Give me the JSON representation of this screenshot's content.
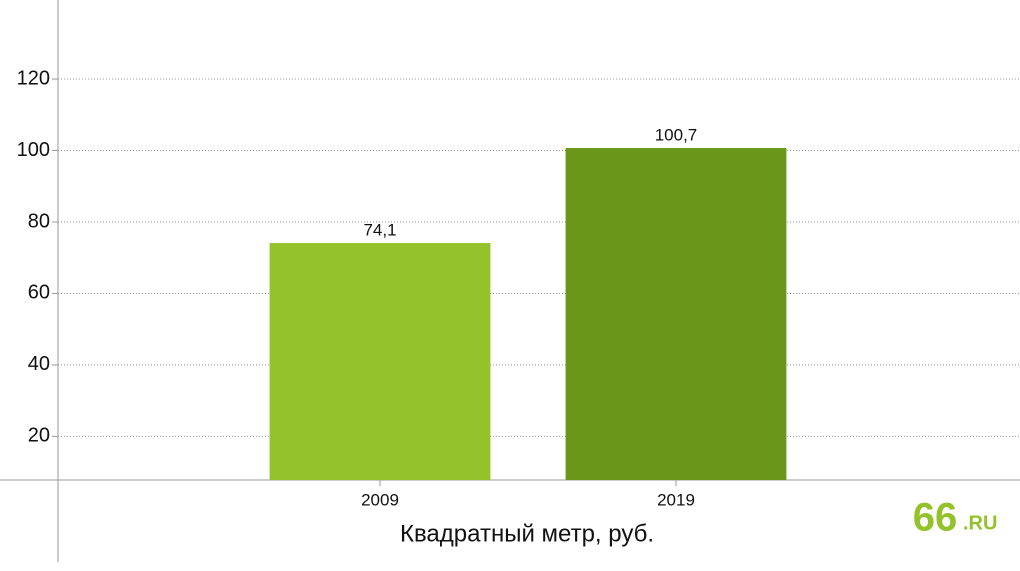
{
  "chart_data": {
    "type": "bar",
    "x_label": "Квадратный метр, руб.",
    "categories": [
      "2009",
      "2019"
    ],
    "values": [
      74.1,
      100.7
    ],
    "value_labels": [
      "74,1",
      "100,7"
    ],
    "colors": [
      "#93c22b",
      "#6a961a"
    ],
    "ylim": [
      7.8,
      141
    ],
    "yticks": [
      20,
      40,
      60,
      80,
      100,
      120
    ],
    "grid": true,
    "brand": {
      "main": "66",
      "suffix": ".RU"
    }
  }
}
